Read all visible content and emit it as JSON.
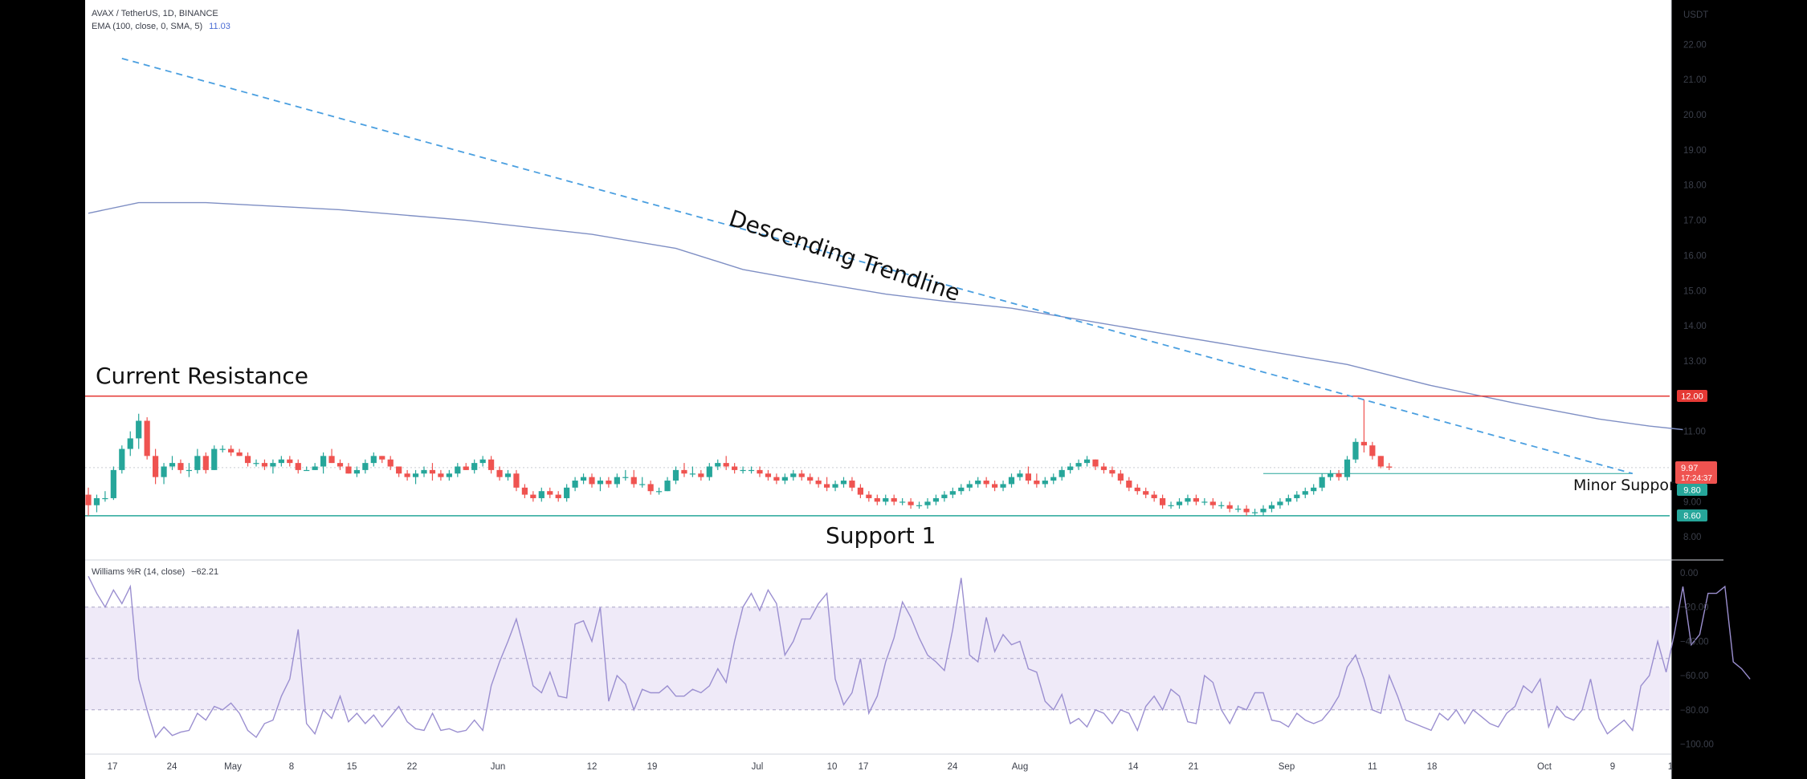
{
  "price_chart": {
    "symbol_line": "AVAX / TetherUS, 1D, BINANCE",
    "ema_label": "EMA (100, close, 0, SMA, 5)",
    "ema_value": "11.03",
    "currency": "USDT",
    "y_ticks": [
      "22.00",
      "21.00",
      "20.00",
      "19.00",
      "18.00",
      "17.00",
      "16.00",
      "15.00",
      "14.00",
      "13.00",
      "11.00",
      "9.00",
      "8.00"
    ],
    "tags": {
      "resistance": "12.00",
      "last_price": "9.97",
      "countdown": "17:24:37",
      "minor_support": "9.80",
      "support": "8.60"
    },
    "annotations": {
      "resistance": "Current Resistance",
      "trendline": "Descending Trendline",
      "minor_support": "Minor Support",
      "support": "Support 1"
    },
    "colors": {
      "up": "#26a69a",
      "down": "#ef5350",
      "ema": "#7f8fc4",
      "trendline": "#4a9fe0",
      "resistance": "#e53935",
      "support": "#26a69a"
    }
  },
  "williams": {
    "label": "Williams %R (14, close)",
    "value": "−62.21",
    "y_ticks": [
      "0.00",
      "−20.00",
      "−40.00",
      "−60.00",
      "−80.00",
      "−100.00"
    ],
    "band_color": "#efeaf8",
    "line_color": "#9b8fd0"
  },
  "x_axis": {
    "labels": [
      "17",
      "24",
      "May",
      "8",
      "15",
      "22",
      "Jun",
      "12",
      "19",
      "Jul",
      "10",
      "17",
      "24",
      "Aug",
      "14",
      "21",
      "Sep",
      "11",
      "18",
      "Oct",
      "9",
      "1"
    ]
  },
  "chart_data": [
    {
      "type": "candlestick",
      "title": "AVAX / TetherUS, 1D, BINANCE",
      "ylabel": "USDT",
      "ylim": [
        7.6,
        22.8
      ],
      "x_start": "2023-04-16",
      "x_end": "2023-10-10",
      "ohlc": [
        [
          9.2,
          9.4,
          8.6,
          8.9
        ],
        [
          8.9,
          9.2,
          8.7,
          9.1
        ],
        [
          9.1,
          9.3,
          9.0,
          9.1
        ],
        [
          9.1,
          10.0,
          9.05,
          9.9
        ],
        [
          9.9,
          10.6,
          9.8,
          10.5
        ],
        [
          10.5,
          11.0,
          10.3,
          10.8
        ],
        [
          10.8,
          11.5,
          10.5,
          11.3
        ],
        [
          11.3,
          11.4,
          10.2,
          10.3
        ],
        [
          10.3,
          10.5,
          9.5,
          9.7
        ],
        [
          9.7,
          10.1,
          9.5,
          10.0
        ],
        [
          10.0,
          10.3,
          9.9,
          10.1
        ],
        [
          10.1,
          10.2,
          9.8,
          9.9
        ],
        [
          9.9,
          10.1,
          9.7,
          9.9
        ],
        [
          9.9,
          10.5,
          9.8,
          10.3
        ],
        [
          10.3,
          10.4,
          9.8,
          9.9
        ],
        [
          9.9,
          10.6,
          9.9,
          10.5
        ],
        [
          10.5,
          10.6,
          10.4,
          10.5
        ],
        [
          10.5,
          10.6,
          10.3,
          10.4
        ],
        [
          10.4,
          10.5,
          10.3,
          10.3
        ],
        [
          10.3,
          10.4,
          10.0,
          10.1
        ],
        [
          10.1,
          10.2,
          10.0,
          10.1
        ],
        [
          10.1,
          10.2,
          9.9,
          10.0
        ],
        [
          10.0,
          10.2,
          9.8,
          10.1
        ],
        [
          10.1,
          10.3,
          10.0,
          10.2
        ],
        [
          10.2,
          10.3,
          10.0,
          10.1
        ],
        [
          10.1,
          10.2,
          9.8,
          9.9
        ],
        [
          9.9,
          10.0,
          9.9,
          9.9
        ],
        [
          9.9,
          10.1,
          9.9,
          10.0
        ],
        [
          10.0,
          10.4,
          9.8,
          10.3
        ],
        [
          10.3,
          10.5,
          10.1,
          10.1
        ],
        [
          10.1,
          10.2,
          9.9,
          10.0
        ],
        [
          10.0,
          10.1,
          9.8,
          9.8
        ],
        [
          9.8,
          10.0,
          9.7,
          9.9
        ],
        [
          9.9,
          10.2,
          9.8,
          10.1
        ],
        [
          10.1,
          10.4,
          10.0,
          10.3
        ],
        [
          10.3,
          10.3,
          10.1,
          10.2
        ],
        [
          10.2,
          10.3,
          9.9,
          10.0
        ],
        [
          10.0,
          10.0,
          9.7,
          9.8
        ],
        [
          9.8,
          9.9,
          9.6,
          9.7
        ],
        [
          9.7,
          9.9,
          9.5,
          9.8
        ],
        [
          9.8,
          10.0,
          9.7,
          9.9
        ],
        [
          9.9,
          10.1,
          9.6,
          9.8
        ],
        [
          9.8,
          9.9,
          9.6,
          9.7
        ],
        [
          9.7,
          9.9,
          9.6,
          9.8
        ],
        [
          9.8,
          10.1,
          9.7,
          10.0
        ],
        [
          10.0,
          10.1,
          9.9,
          9.9
        ],
        [
          9.9,
          10.2,
          9.8,
          10.1
        ],
        [
          10.1,
          10.3,
          10.0,
          10.2
        ],
        [
          10.2,
          10.3,
          9.8,
          9.9
        ],
        [
          9.9,
          10.0,
          9.6,
          9.7
        ],
        [
          9.7,
          9.9,
          9.6,
          9.8
        ],
        [
          9.8,
          9.9,
          9.3,
          9.4
        ],
        [
          9.4,
          9.5,
          9.1,
          9.2
        ],
        [
          9.2,
          9.3,
          9.0,
          9.1
        ],
        [
          9.1,
          9.4,
          9.0,
          9.3
        ],
        [
          9.3,
          9.4,
          9.1,
          9.2
        ],
        [
          9.2,
          9.3,
          9.0,
          9.1
        ],
        [
          9.1,
          9.5,
          9.0,
          9.4
        ],
        [
          9.4,
          9.7,
          9.3,
          9.6
        ],
        [
          9.6,
          9.8,
          9.5,
          9.7
        ],
        [
          9.7,
          9.8,
          9.4,
          9.5
        ],
        [
          9.5,
          9.7,
          9.3,
          9.6
        ],
        [
          9.6,
          9.7,
          9.4,
          9.5
        ],
        [
          9.5,
          9.8,
          9.4,
          9.7
        ],
        [
          9.7,
          9.9,
          9.6,
          9.7
        ],
        [
          9.7,
          9.9,
          9.4,
          9.5
        ],
        [
          9.5,
          9.7,
          9.4,
          9.5
        ],
        [
          9.5,
          9.6,
          9.2,
          9.3
        ],
        [
          9.3,
          9.4,
          9.2,
          9.3
        ],
        [
          9.3,
          9.7,
          9.3,
          9.6
        ],
        [
          9.6,
          10.0,
          9.5,
          9.9
        ],
        [
          9.9,
          10.1,
          9.7,
          9.8
        ],
        [
          9.8,
          10.0,
          9.7,
          9.8
        ],
        [
          9.8,
          9.9,
          9.6,
          9.7
        ],
        [
          9.7,
          10.1,
          9.6,
          10.0
        ],
        [
          10.0,
          10.2,
          9.9,
          10.1
        ],
        [
          10.1,
          10.3,
          9.9,
          10.0
        ],
        [
          10.0,
          10.1,
          9.8,
          9.9
        ],
        [
          9.9,
          10.0,
          9.8,
          9.9
        ],
        [
          9.9,
          10.0,
          9.8,
          9.9
        ],
        [
          9.9,
          10.0,
          9.7,
          9.8
        ],
        [
          9.8,
          9.9,
          9.6,
          9.7
        ],
        [
          9.7,
          9.8,
          9.5,
          9.6
        ],
        [
          9.6,
          9.8,
          9.5,
          9.7
        ],
        [
          9.7,
          9.9,
          9.6,
          9.8
        ],
        [
          9.8,
          9.9,
          9.6,
          9.7
        ],
        [
          9.7,
          9.8,
          9.5,
          9.6
        ],
        [
          9.6,
          9.7,
          9.4,
          9.5
        ],
        [
          9.5,
          9.7,
          9.3,
          9.4
        ],
        [
          9.4,
          9.6,
          9.3,
          9.5
        ],
        [
          9.5,
          9.7,
          9.4,
          9.6
        ],
        [
          9.6,
          9.7,
          9.3,
          9.4
        ],
        [
          9.4,
          9.5,
          9.1,
          9.2
        ],
        [
          9.2,
          9.3,
          9.0,
          9.1
        ],
        [
          9.1,
          9.2,
          8.9,
          9.0
        ],
        [
          9.0,
          9.2,
          8.9,
          9.1
        ],
        [
          9.1,
          9.2,
          8.9,
          9.0
        ],
        [
          9.0,
          9.1,
          8.9,
          9.0
        ],
        [
          9.0,
          9.1,
          8.8,
          8.9
        ],
        [
          8.9,
          9.0,
          8.8,
          8.9
        ],
        [
          8.9,
          9.1,
          8.8,
          9.0
        ],
        [
          9.0,
          9.2,
          8.9,
          9.1
        ],
        [
          9.1,
          9.3,
          9.0,
          9.2
        ],
        [
          9.2,
          9.4,
          9.1,
          9.3
        ],
        [
          9.3,
          9.5,
          9.2,
          9.4
        ],
        [
          9.4,
          9.6,
          9.3,
          9.5
        ],
        [
          9.5,
          9.7,
          9.4,
          9.6
        ],
        [
          9.6,
          9.7,
          9.4,
          9.5
        ],
        [
          9.5,
          9.6,
          9.3,
          9.4
        ],
        [
          9.4,
          9.6,
          9.3,
          9.5
        ],
        [
          9.5,
          9.8,
          9.4,
          9.7
        ],
        [
          9.7,
          9.9,
          9.6,
          9.8
        ],
        [
          9.8,
          10.0,
          9.5,
          9.6
        ],
        [
          9.6,
          9.8,
          9.4,
          9.5
        ],
        [
          9.5,
          9.7,
          9.4,
          9.6
        ],
        [
          9.6,
          9.8,
          9.5,
          9.7
        ],
        [
          9.7,
          10.0,
          9.6,
          9.9
        ],
        [
          9.9,
          10.1,
          9.8,
          10.0
        ],
        [
          10.0,
          10.2,
          9.9,
          10.1
        ],
        [
          10.1,
          10.3,
          10.0,
          10.2
        ],
        [
          10.2,
          10.2,
          9.9,
          10.0
        ],
        [
          10.0,
          10.1,
          9.8,
          9.9
        ],
        [
          9.9,
          10.0,
          9.7,
          9.8
        ],
        [
          9.8,
          9.9,
          9.5,
          9.6
        ],
        [
          9.6,
          9.7,
          9.3,
          9.4
        ],
        [
          9.4,
          9.5,
          9.2,
          9.3
        ],
        [
          9.3,
          9.4,
          9.1,
          9.2
        ],
        [
          9.2,
          9.3,
          9.0,
          9.1
        ],
        [
          9.1,
          9.2,
          8.8,
          8.9
        ],
        [
          8.9,
          9.0,
          8.8,
          8.9
        ],
        [
          8.9,
          9.1,
          8.8,
          9.0
        ],
        [
          9.0,
          9.2,
          8.9,
          9.1
        ],
        [
          9.1,
          9.2,
          8.9,
          9.0
        ],
        [
          9.0,
          9.1,
          8.9,
          9.0
        ],
        [
          9.0,
          9.1,
          8.8,
          8.9
        ],
        [
          8.9,
          9.0,
          8.8,
          8.9
        ],
        [
          8.9,
          9.0,
          8.7,
          8.8
        ],
        [
          8.8,
          8.9,
          8.7,
          8.8
        ],
        [
          8.8,
          8.9,
          8.6,
          8.7
        ],
        [
          8.7,
          8.8,
          8.6,
          8.7
        ],
        [
          8.7,
          8.9,
          8.6,
          8.8
        ],
        [
          8.8,
          9.0,
          8.7,
          8.9
        ],
        [
          8.9,
          9.1,
          8.8,
          9.0
        ],
        [
          9.0,
          9.2,
          8.9,
          9.1
        ],
        [
          9.1,
          9.3,
          9.0,
          9.2
        ],
        [
          9.2,
          9.4,
          9.1,
          9.3
        ],
        [
          9.3,
          9.5,
          9.2,
          9.4
        ],
        [
          9.4,
          9.8,
          9.3,
          9.7
        ],
        [
          9.7,
          9.9,
          9.6,
          9.8
        ],
        [
          9.8,
          9.9,
          9.6,
          9.7
        ],
        [
          9.7,
          10.3,
          9.6,
          10.2
        ],
        [
          10.2,
          10.8,
          10.1,
          10.7
        ],
        [
          10.7,
          11.9,
          10.4,
          10.6
        ],
        [
          10.6,
          10.7,
          10.2,
          10.3
        ],
        [
          10.3,
          10.3,
          9.95,
          10.0
        ],
        [
          10.0,
          10.1,
          9.9,
          9.97
        ]
      ],
      "ema100": [
        [
          0,
          17.2
        ],
        [
          6,
          17.5
        ],
        [
          14,
          17.5
        ],
        [
          30,
          17.3
        ],
        [
          45,
          17.0
        ],
        [
          60,
          16.6
        ],
        [
          70,
          16.2
        ],
        [
          78,
          15.6
        ],
        [
          85,
          15.3
        ],
        [
          95,
          14.9
        ],
        [
          102,
          14.7
        ],
        [
          110,
          14.5
        ],
        [
          120,
          14.1
        ],
        [
          130,
          13.7
        ],
        [
          140,
          13.3
        ],
        [
          150,
          12.9
        ],
        [
          160,
          12.3
        ],
        [
          170,
          11.8
        ],
        [
          180,
          11.35
        ],
        [
          186,
          11.15
        ],
        [
          190,
          11.05
        ]
      ],
      "trendline": {
        "from": [
          4,
          21.6
        ],
        "to": [
          184,
          9.8
        ],
        "style": "dashed"
      },
      "levels": [
        {
          "name": "Current Resistance",
          "value": 12.0
        },
        {
          "name": "Minor Support",
          "value": 9.8
        },
        {
          "name": "Support 1",
          "value": 8.6
        }
      ]
    },
    {
      "type": "line",
      "title": "Williams %R (14, close)",
      "ylim": [
        -100,
        0
      ],
      "bands": [
        -20,
        -50,
        -80
      ],
      "values": [
        -2,
        -12,
        -20,
        -10,
        -18,
        -8,
        -62,
        -80,
        -96,
        -90,
        -95,
        -93,
        -92,
        -82,
        -86,
        -78,
        -80,
        -76,
        -82,
        -92,
        -96,
        -88,
        -86,
        -72,
        -62,
        -33,
        -88,
        -94,
        -80,
        -85,
        -72,
        -87,
        -82,
        -88,
        -83,
        -90,
        -84,
        -78,
        -87,
        -91,
        -92,
        -82,
        -92,
        -91,
        -93,
        -92,
        -86,
        -92,
        -66,
        -52,
        -40,
        -27,
        -46,
        -66,
        -70,
        -58,
        -72,
        -73,
        -30,
        -28,
        -40,
        -20,
        -75,
        -60,
        -65,
        -80,
        -68,
        -70,
        -70,
        -66,
        -72,
        -72,
        -68,
        -70,
        -66,
        -56,
        -64,
        -40,
        -20,
        -12,
        -22,
        -10,
        -18,
        -48,
        -40,
        -27,
        -27,
        -18,
        -12,
        -62,
        -77,
        -70,
        -50,
        -82,
        -72,
        -52,
        -38,
        -17,
        -26,
        -38,
        -48,
        -52,
        -57,
        -33,
        -3,
        -48,
        -52,
        -26,
        -46,
        -36,
        -42,
        -40,
        -56,
        -58,
        -75,
        -80,
        -71,
        -88,
        -85,
        -90,
        -80,
        -82,
        -88,
        -80,
        -82,
        -92,
        -78,
        -72,
        -80,
        -68,
        -72,
        -87,
        -88,
        -60,
        -64,
        -80,
        -88,
        -78,
        -80,
        -70,
        -70,
        -86,
        -87,
        -90,
        -82,
        -86,
        -88,
        -86,
        -80,
        -72,
        -55,
        -48,
        -62,
        -80,
        -82,
        -60,
        -72,
        -86,
        -88,
        -90,
        -92,
        -82,
        -86,
        -80,
        -88,
        -80,
        -84,
        -88,
        -90,
        -82,
        -78,
        -66,
        -70,
        -62,
        -90,
        -78,
        -84,
        -86,
        -80,
        -62,
        -85,
        -94,
        -90,
        -86,
        -92,
        -66,
        -60,
        -40,
        -58,
        -35,
        -8,
        -42,
        -36,
        -12,
        -12,
        -8,
        -52,
        -56,
        -62
      ]
    }
  ]
}
